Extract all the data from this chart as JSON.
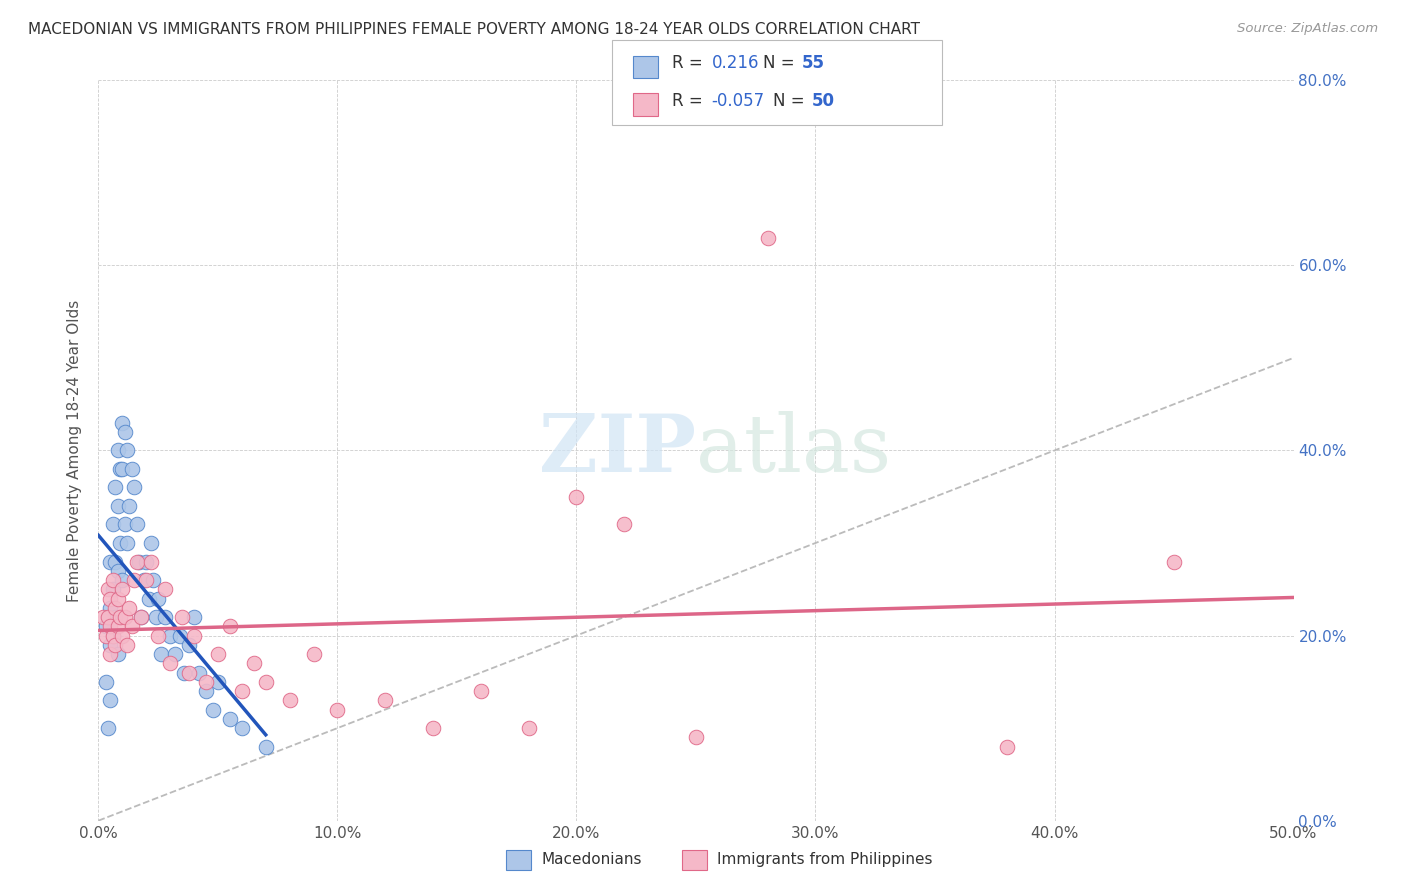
{
  "title": "MACEDONIAN VS IMMIGRANTS FROM PHILIPPINES FEMALE POVERTY AMONG 18-24 YEAR OLDS CORRELATION CHART",
  "source": "Source: ZipAtlas.com",
  "ylabel": "Female Poverty Among 18-24 Year Olds",
  "xlim": [
    0.0,
    0.5
  ],
  "ylim": [
    0.0,
    0.8
  ],
  "xticks": [
    0.0,
    0.1,
    0.2,
    0.3,
    0.4,
    0.5
  ],
  "yticks": [
    0.0,
    0.2,
    0.4,
    0.6,
    0.8
  ],
  "xticklabels": [
    "0.0%",
    "10.0%",
    "20.0%",
    "30.0%",
    "40.0%",
    "50.0%"
  ],
  "yticklabels_right": [
    "0.0%",
    "20.0%",
    "40.0%",
    "60.0%",
    "80.0%"
  ],
  "macedonian_color": "#adc6e8",
  "philippines_color": "#f5b8c8",
  "macedonian_edge": "#5588cc",
  "philippines_edge": "#e06888",
  "ref_line_color": "#bbbbbb",
  "blue_line_color": "#2255bb",
  "pink_line_color": "#dd6688",
  "R1": "0.216",
  "N1": "55",
  "R2": "-0.057",
  "N2": "50",
  "watermark1": "ZIP",
  "watermark2": "atlas",
  "macedonians_x": [
    0.003,
    0.003,
    0.004,
    0.004,
    0.005,
    0.005,
    0.005,
    0.005,
    0.006,
    0.006,
    0.006,
    0.007,
    0.007,
    0.007,
    0.008,
    0.008,
    0.008,
    0.008,
    0.009,
    0.009,
    0.01,
    0.01,
    0.01,
    0.011,
    0.011,
    0.012,
    0.012,
    0.013,
    0.014,
    0.015,
    0.016,
    0.017,
    0.018,
    0.019,
    0.02,
    0.021,
    0.022,
    0.023,
    0.024,
    0.025,
    0.026,
    0.028,
    0.03,
    0.032,
    0.034,
    0.036,
    0.038,
    0.04,
    0.042,
    0.045,
    0.048,
    0.05,
    0.055,
    0.06,
    0.07
  ],
  "macedonians_y": [
    0.21,
    0.15,
    0.22,
    0.1,
    0.23,
    0.19,
    0.28,
    0.13,
    0.32,
    0.25,
    0.2,
    0.36,
    0.28,
    0.22,
    0.4,
    0.34,
    0.27,
    0.18,
    0.38,
    0.3,
    0.43,
    0.38,
    0.26,
    0.42,
    0.32,
    0.4,
    0.3,
    0.34,
    0.38,
    0.36,
    0.32,
    0.28,
    0.22,
    0.26,
    0.28,
    0.24,
    0.3,
    0.26,
    0.22,
    0.24,
    0.18,
    0.22,
    0.2,
    0.18,
    0.2,
    0.16,
    0.19,
    0.22,
    0.16,
    0.14,
    0.12,
    0.15,
    0.11,
    0.1,
    0.08
  ],
  "philippines_x": [
    0.002,
    0.003,
    0.004,
    0.004,
    0.005,
    0.005,
    0.005,
    0.006,
    0.006,
    0.007,
    0.007,
    0.008,
    0.008,
    0.009,
    0.01,
    0.01,
    0.011,
    0.012,
    0.013,
    0.014,
    0.015,
    0.016,
    0.018,
    0.02,
    0.022,
    0.025,
    0.028,
    0.03,
    0.035,
    0.038,
    0.04,
    0.045,
    0.05,
    0.055,
    0.06,
    0.065,
    0.07,
    0.08,
    0.09,
    0.1,
    0.12,
    0.14,
    0.16,
    0.18,
    0.2,
    0.22,
    0.25,
    0.28,
    0.38,
    0.45
  ],
  "philippines_y": [
    0.22,
    0.2,
    0.25,
    0.22,
    0.24,
    0.21,
    0.18,
    0.26,
    0.2,
    0.23,
    0.19,
    0.24,
    0.21,
    0.22,
    0.25,
    0.2,
    0.22,
    0.19,
    0.23,
    0.21,
    0.26,
    0.28,
    0.22,
    0.26,
    0.28,
    0.2,
    0.25,
    0.17,
    0.22,
    0.16,
    0.2,
    0.15,
    0.18,
    0.21,
    0.14,
    0.17,
    0.15,
    0.13,
    0.18,
    0.12,
    0.13,
    0.1,
    0.14,
    0.1,
    0.35,
    0.32,
    0.09,
    0.63,
    0.08,
    0.28
  ]
}
